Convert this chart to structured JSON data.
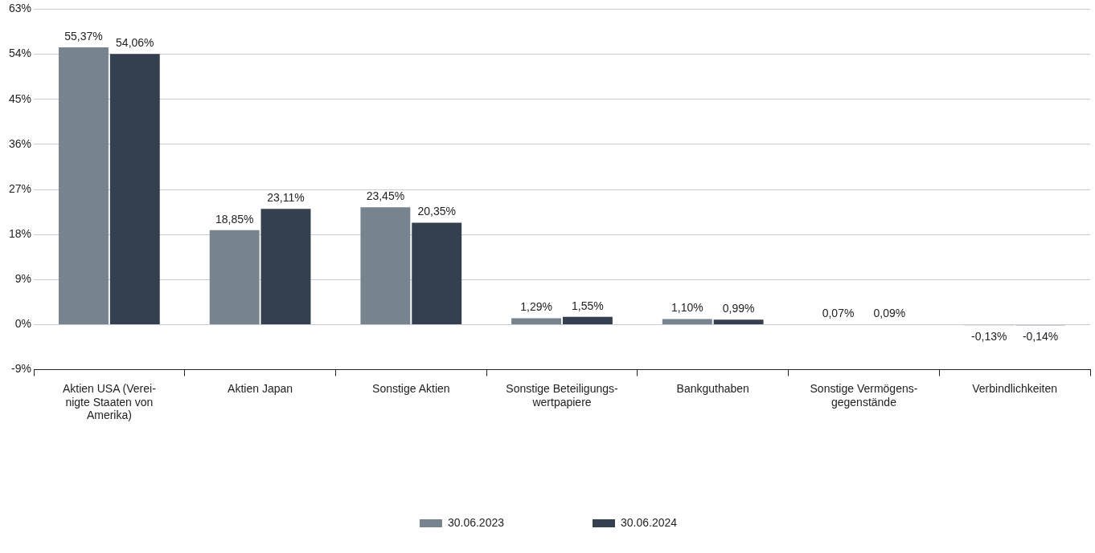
{
  "chart_data": {
    "type": "bar",
    "categories": [
      "Aktien USA (Verei-\nnigte Staaten von\nAmerika)",
      "Aktien Japan",
      "Sonstige Aktien",
      "Sonstige Beteiligungs-\nwertpapiere",
      "Bankguthaben",
      "Sonstige Vermögens-\ngegenstände",
      "Verbindlichkeiten"
    ],
    "series": [
      {
        "name": "30.06.2023",
        "color": "#77838f",
        "values": [
          55.37,
          18.85,
          23.45,
          1.29,
          1.1,
          0.07,
          -0.13
        ],
        "value_labels": [
          "55,37%",
          "18,85%",
          "23,45%",
          "1,29%",
          "1,10%",
          "0,07%",
          "-0,13%"
        ]
      },
      {
        "name": "30.06.2024",
        "color": "#343f50",
        "values": [
          54.06,
          23.11,
          20.35,
          1.55,
          0.99,
          0.09,
          -0.14
        ],
        "value_labels": [
          "54,06%",
          "23,11%",
          "20,35%",
          "1,55%",
          "0,99%",
          "0,09%",
          "-0,14%"
        ]
      }
    ],
    "ylim": [
      -9,
      63
    ],
    "yticks": [
      {
        "value": -9,
        "label": "-9%"
      },
      {
        "value": 0,
        "label": "0%"
      },
      {
        "value": 9,
        "label": "9%"
      },
      {
        "value": 18,
        "label": "18%"
      },
      {
        "value": 27,
        "label": "27%"
      },
      {
        "value": 36,
        "label": "36%"
      },
      {
        "value": 45,
        "label": "45%"
      },
      {
        "value": 54,
        "label": "54%"
      },
      {
        "value": 63,
        "label": "63%"
      }
    ],
    "grid": "y",
    "legend": "bottom"
  }
}
